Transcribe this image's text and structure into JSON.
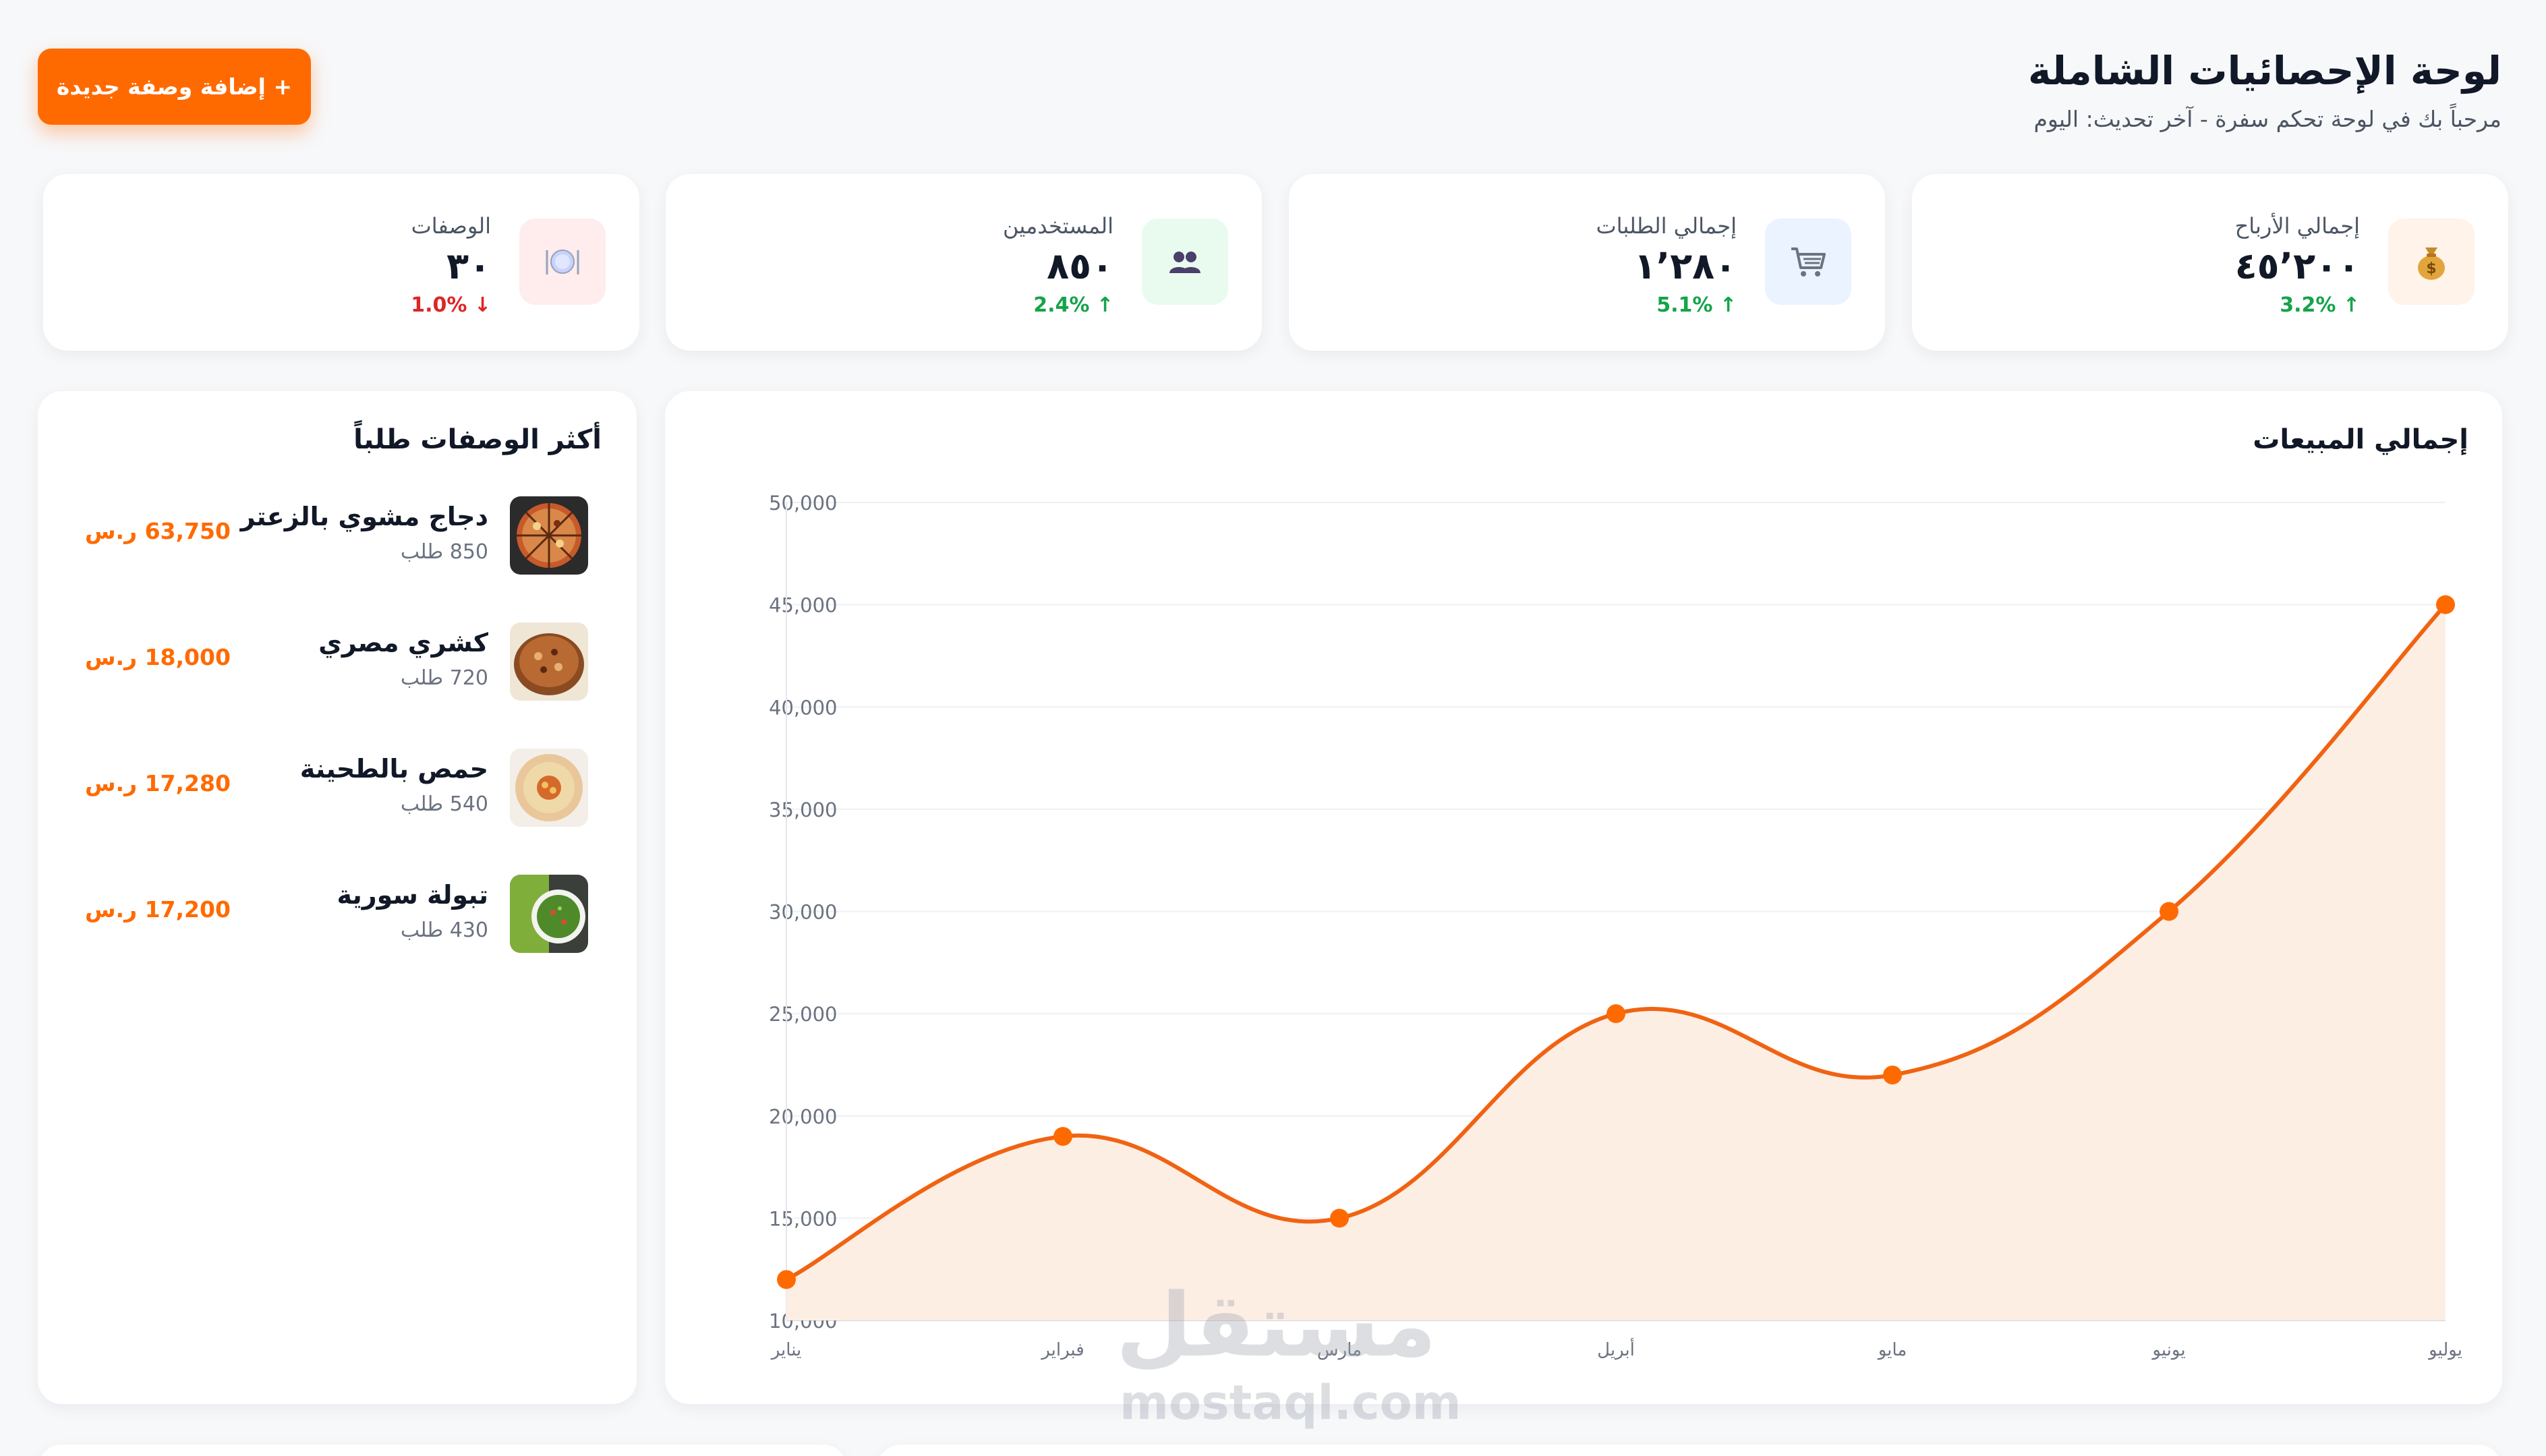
{
  "header": {
    "title": "لوحة الإحصائيات الشاملة",
    "subtitle": "مرحباً بك في لوحة تحكم سفرة - آخر تحديث: اليوم",
    "add_button_label": "+ إضافة وصفة جديدة"
  },
  "stats": [
    {
      "label": "إجمالي الأرباح",
      "value": "٤٥٬٢٠٠",
      "change": "3.2% ↑",
      "trend": "up",
      "icon": "money-bag-icon",
      "icon_bg": "#fff3ea"
    },
    {
      "label": "إجمالي الطلبات",
      "value": "١٬٢٨٠",
      "change": "5.1% ↑",
      "trend": "up",
      "icon": "cart-icon",
      "icon_bg": "#eaf3ff"
    },
    {
      "label": "المستخدمين",
      "value": "٨٥٠",
      "change": "2.4% ↑",
      "trend": "up",
      "icon": "users-icon",
      "icon_bg": "#e9fbef"
    },
    {
      "label": "الوصفات",
      "value": "٣٠",
      "change": "1.0% ↓",
      "trend": "down",
      "icon": "plate-icon",
      "icon_bg": "#ffecec"
    }
  ],
  "top_recipes": {
    "title": "أكثر الوصفات طلباً",
    "items": [
      {
        "name": "دجاج مشوي بالزعتر",
        "orders": "850 طلب",
        "revenue": "63,750 ر.س"
      },
      {
        "name": "كشري مصري",
        "orders": "720 طلب",
        "revenue": "18,000 ر.س"
      },
      {
        "name": "حمص بالطحينة",
        "orders": "540 طلب",
        "revenue": "17,280 ر.س"
      },
      {
        "name": "تبولة سورية",
        "orders": "430 طلب",
        "revenue": "17,200 ر.س"
      }
    ]
  },
  "sales": {
    "title": "إجمالي المبيعات"
  },
  "chart_data": {
    "type": "area",
    "categories": [
      "يناير",
      "فبراير",
      "مارس",
      "أبريل",
      "مايو",
      "يونيو",
      "يوليو"
    ],
    "series": [
      {
        "values": [
          12000,
          19000,
          15000,
          25000,
          22000,
          30000,
          45000
        ]
      }
    ],
    "yticks": [
      "10,000",
      "15,000",
      "20,000",
      "25,000",
      "30,000",
      "35,000",
      "40,000",
      "45,000",
      "50,000"
    ],
    "ylim": [
      10000,
      50000
    ],
    "grid": true,
    "line_color": "#f06312",
    "fill_color": "#fdeee4",
    "title": "",
    "xlabel": "",
    "ylabel": ""
  },
  "watermark": {
    "ar": "مستقل",
    "en": "mostaql.com"
  },
  "colors": {
    "accent": "#ff6a00",
    "up": "#16a34a",
    "down": "#dc2626"
  }
}
